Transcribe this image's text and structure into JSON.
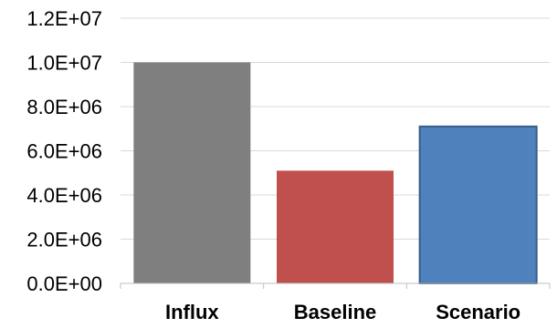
{
  "chart_data": {
    "type": "bar",
    "categories": [
      "Influx",
      "Baseline",
      "Scenario"
    ],
    "values": [
      10000000,
      5100000,
      7100000
    ],
    "colors": [
      "#7f7f7f",
      "#c0504d",
      "#4f81bd"
    ],
    "ylim": [
      0,
      12000000
    ],
    "yticks": [
      0,
      2000000,
      4000000,
      6000000,
      8000000,
      10000000,
      12000000
    ],
    "ytick_labels": [
      "0.0E+00",
      "2.0E+06",
      "4.0E+06",
      "6.0E+06",
      "8.0E+06",
      "1.0E+07",
      "1.2E+07"
    ],
    "grid": true,
    "title": "",
    "xlabel": "",
    "ylabel": ""
  }
}
